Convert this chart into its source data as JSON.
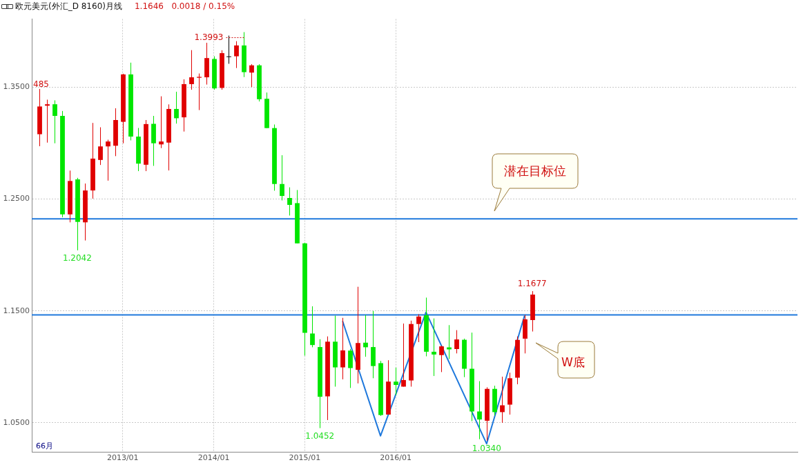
{
  "chart_data": {
    "type": "candlestick",
    "title": "欧元美元(外汇_D 8160)月线",
    "subtitle": "1.1646   0.0018 / 0.15%",
    "x": [
      "2012-02",
      "2012-03",
      "2012-04",
      "2012-05",
      "2012-06",
      "2012-07",
      "2012-08",
      "2012-09",
      "2012-10",
      "2012-11",
      "2012-12",
      "2013-01",
      "2013-02",
      "2013-03",
      "2013-04",
      "2013-05",
      "2013-06",
      "2013-07",
      "2013-08",
      "2013-09",
      "2013-10",
      "2013-11",
      "2013-12",
      "2014-01",
      "2014-02",
      "2014-03",
      "2014-04",
      "2014-05",
      "2014-06",
      "2014-07",
      "2014-08",
      "2014-09",
      "2014-10",
      "2014-11",
      "2014-12",
      "2015-01",
      "2015-02",
      "2015-03",
      "2015-04",
      "2015-05",
      "2015-06",
      "2015-07",
      "2015-08",
      "2015-09",
      "2015-10",
      "2015-11",
      "2015-12",
      "2016-01",
      "2016-02",
      "2016-03",
      "2016-04",
      "2016-05",
      "2016-06",
      "2016-07",
      "2016-08",
      "2016-09",
      "2016-10",
      "2016-11",
      "2016-12",
      "2017-01",
      "2017-02",
      "2017-03",
      "2017-04",
      "2017-05",
      "2017-06",
      "2017-07"
    ],
    "ohlc": [
      [
        1.308,
        1.3485,
        1.2973,
        1.3328
      ],
      [
        1.3335,
        1.3389,
        1.3005,
        1.3348
      ],
      [
        1.3348,
        1.3383,
        1.2999,
        1.3244
      ],
      [
        1.3244,
        1.3288,
        1.2338,
        1.2363
      ],
      [
        1.2363,
        1.2755,
        1.2292,
        1.2662
      ],
      [
        1.2676,
        1.269,
        1.2042,
        1.2296
      ],
      [
        1.2292,
        1.2639,
        1.213,
        1.2577
      ],
      [
        1.2577,
        1.3181,
        1.2504,
        1.2862
      ],
      [
        1.285,
        1.3142,
        1.2805,
        1.2971
      ],
      [
        1.2971,
        1.3031,
        1.2665,
        1.3015
      ],
      [
        1.2977,
        1.3312,
        1.2884,
        1.3207
      ],
      [
        1.3191,
        1.3621,
        1.2999,
        1.3615
      ],
      [
        1.3615,
        1.372,
        1.3025,
        1.3059
      ],
      [
        1.3059,
        1.3136,
        1.275,
        1.2817
      ],
      [
        1.2807,
        1.3207,
        1.275,
        1.3171
      ],
      [
        1.3173,
        1.3244,
        1.2797,
        1.2999
      ],
      [
        1.2989,
        1.3419,
        1.2956,
        1.3015
      ],
      [
        1.3005,
        1.3347,
        1.2756,
        1.3306
      ],
      [
        1.3306,
        1.346,
        1.3175,
        1.3223
      ],
      [
        1.3231,
        1.3571,
        1.3104,
        1.3528
      ],
      [
        1.3528,
        1.3832,
        1.3478,
        1.3589
      ],
      [
        1.3585,
        1.3623,
        1.3296,
        1.3593
      ],
      [
        1.3589,
        1.3898,
        1.3524,
        1.3761
      ],
      [
        1.3753,
        1.3777,
        1.3478,
        1.349
      ],
      [
        1.3494,
        1.3831,
        1.3478,
        1.3805
      ],
      [
        1.3773,
        1.3962,
        1.371,
        1.3773
      ],
      [
        1.3777,
        1.3912,
        1.3672,
        1.3874
      ],
      [
        1.3874,
        1.3993,
        1.3591,
        1.3635
      ],
      [
        1.3631,
        1.3706,
        1.3502,
        1.3696
      ],
      [
        1.3696,
        1.3706,
        1.3373,
        1.3393
      ],
      [
        1.3397,
        1.3453,
        1.3134,
        1.3135
      ],
      [
        1.3135,
        1.3167,
        1.2575,
        1.2635
      ],
      [
        1.2635,
        1.2892,
        1.2488,
        1.2528
      ],
      [
        1.251,
        1.2605,
        1.2353,
        1.2448
      ],
      [
        1.2464,
        1.2581,
        1.2104,
        1.2104
      ],
      [
        1.2104,
        1.211,
        1.11,
        1.1304
      ],
      [
        1.1298,
        1.1541,
        1.1175,
        1.1195
      ],
      [
        1.1177,
        1.1247,
        1.0452,
        1.0732
      ],
      [
        1.0736,
        1.1272,
        1.0524,
        1.1225
      ],
      [
        1.1225,
        1.1458,
        1.0823,
        1.0995
      ],
      [
        1.0995,
        1.1438,
        1.0888,
        1.1147
      ],
      [
        1.1145,
        1.116,
        1.0811,
        1.0989
      ],
      [
        1.0973,
        1.1716,
        1.0852,
        1.1213
      ],
      [
        1.1216,
        1.1464,
        1.109,
        1.1175
      ],
      [
        1.1177,
        1.15,
        1.0898,
        1.1007
      ],
      [
        1.1033,
        1.1053,
        1.0561,
        1.0569
      ],
      [
        1.0573,
        1.1059,
        1.0573,
        1.0868
      ],
      [
        1.0868,
        1.0993,
        1.0746,
        1.0838
      ],
      [
        1.0823,
        1.1387,
        1.0823,
        1.0882
      ],
      [
        1.0878,
        1.1413,
        1.0823,
        1.1383
      ],
      [
        1.1383,
        1.147,
        1.1221,
        1.145
      ],
      [
        1.1462,
        1.1619,
        1.1094,
        1.1135
      ],
      [
        1.1135,
        1.1433,
        1.0918,
        1.111
      ],
      [
        1.1105,
        1.119,
        1.0953,
        1.1183
      ],
      [
        1.1174,
        1.1373,
        1.107,
        1.1156
      ],
      [
        1.1159,
        1.1328,
        1.112,
        1.1245
      ],
      [
        1.1242,
        1.1252,
        1.0908,
        1.0983
      ],
      [
        1.0983,
        1.1306,
        1.0514,
        1.0601
      ],
      [
        1.0601,
        1.0872,
        1.0353,
        1.0529
      ],
      [
        1.0518,
        1.0817,
        1.034,
        1.0803
      ],
      [
        1.0803,
        1.0831,
        1.0565,
        1.0595
      ],
      [
        1.0595,
        1.0912,
        1.05,
        1.0656
      ],
      [
        1.0662,
        1.0948,
        1.0573,
        1.0898
      ],
      [
        1.0903,
        1.1272,
        1.0844,
        1.1241
      ],
      [
        1.1252,
        1.1464,
        1.112,
        1.1425
      ],
      [
        1.1418,
        1.1677,
        1.1316,
        1.1646
      ]
    ],
    "colors": [
      "#e00000",
      "#e00000",
      "#00e600",
      "#00e600",
      "#e00000",
      "#00e600",
      "#e00000",
      "#e00000",
      "#e00000",
      "#e00000",
      "#e00000",
      "#e00000",
      "#00e600",
      "#00e600",
      "#e00000",
      "#00e600",
      "#e00000",
      "#e00000",
      "#00e600",
      "#e00000",
      "#e00000",
      "#e00000",
      "#e00000",
      "#00e600",
      "#e00000",
      "#000000",
      "#e00000",
      "#00e600",
      "#e00000",
      "#00e600",
      "#00e600",
      "#00e600",
      "#00e600",
      "#00e600",
      "#00e600",
      "#00e600",
      "#00e600",
      "#00e600",
      "#e00000",
      "#00e600",
      "#e00000",
      "#00e600",
      "#e00000",
      "#00e600",
      "#00e600",
      "#00e600",
      "#e00000",
      "#00e600",
      "#e00000",
      "#e00000",
      "#e00000",
      "#00e600",
      "#00e600",
      "#e00000",
      "#00e600",
      "#e00000",
      "#00e600",
      "#00e600",
      "#00e600",
      "#e00000",
      "#00e600",
      "#e00000",
      "#e00000",
      "#e00000",
      "#e00000",
      "#e00000"
    ],
    "series": [
      {
        "type": "line",
        "color": "#1e78dc",
        "x": [
          "2015-06",
          "2015-11",
          "2016-05",
          "2017-01",
          "2017-06"
        ],
        "values": [
          1.1409,
          1.0383,
          1.1488,
          1.0312,
          1.1458
        ]
      }
    ],
    "ref_lines": [
      {
        "axis": "y",
        "value": 1.2324,
        "color": "#1e78dc"
      },
      {
        "axis": "y",
        "value": 1.1464,
        "color": "#1e78dc"
      }
    ],
    "xlim": [
      "2012-01",
      "2020-06"
    ],
    "xticks": [
      {
        "value": "2013-01",
        "label": "2013/01"
      },
      {
        "value": "2014-01",
        "label": "2014/01"
      },
      {
        "value": "2015-01",
        "label": "2015/01"
      },
      {
        "value": "2016-01",
        "label": "2016/01"
      }
    ],
    "ylim": [
      1.024,
      1.411
    ],
    "yticks": [
      {
        "value": 1.05,
        "label": "1.0500"
      },
      {
        "value": 1.15,
        "label": "1.1500"
      },
      {
        "value": 1.25,
        "label": "1.2500"
      },
      {
        "value": 1.35,
        "label": "1.3500"
      }
    ],
    "grid": true,
    "annotations": [
      {
        "text": "485",
        "x": "2012-02",
        "y": 1.3485
      },
      {
        "text": "1.3993",
        "x": "2014-05",
        "y": 1.3993
      },
      {
        "text": "1.2042",
        "x": "2012-07",
        "y": 1.2042
      },
      {
        "text": "1.0452",
        "x": "2015-03",
        "y": 1.0452
      },
      {
        "text": "1.0340",
        "x": "2017-01",
        "y": 1.034
      },
      {
        "text": "1.1677",
        "x": "2017-07",
        "y": 1.1677
      },
      "潜在目标位",
      "W底",
      "66月"
    ]
  }
}
